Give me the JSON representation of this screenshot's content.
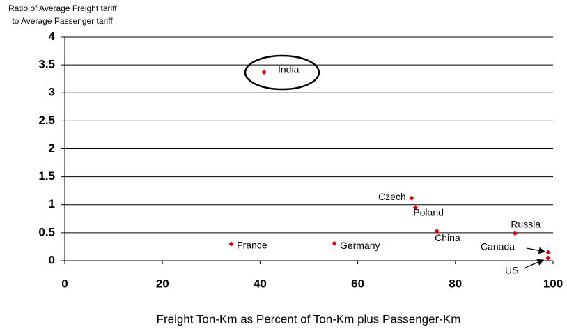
{
  "chart_data": {
    "type": "scatter",
    "y_label": [
      "Ratio of Average Freight tariff",
      " to Average Passenger tariff"
    ],
    "x_label": "Freight Ton-Km as Percent of Ton-Km plus Passenger-Km",
    "labels": [
      "India",
      "France",
      "Germany",
      "Czech",
      "Poland",
      "China",
      "Russia",
      "Canada",
      "US"
    ],
    "x": [
      40.8,
      34.1,
      55.2,
      71.0,
      71.8,
      76.2,
      92.2,
      99.0,
      99.0
    ],
    "values": [
      3.37,
      0.3,
      0.31,
      1.12,
      0.95,
      0.53,
      0.49,
      0.15,
      0.05
    ],
    "color": "#e00000",
    "xlim": [
      0,
      100
    ],
    "xticks": [
      0,
      20,
      40,
      60,
      80,
      100
    ],
    "ylim": [
      0,
      4
    ],
    "yticks": [
      0,
      0.5,
      1,
      1.5,
      2,
      2.5,
      3,
      3.5,
      4
    ],
    "grid": true
  }
}
